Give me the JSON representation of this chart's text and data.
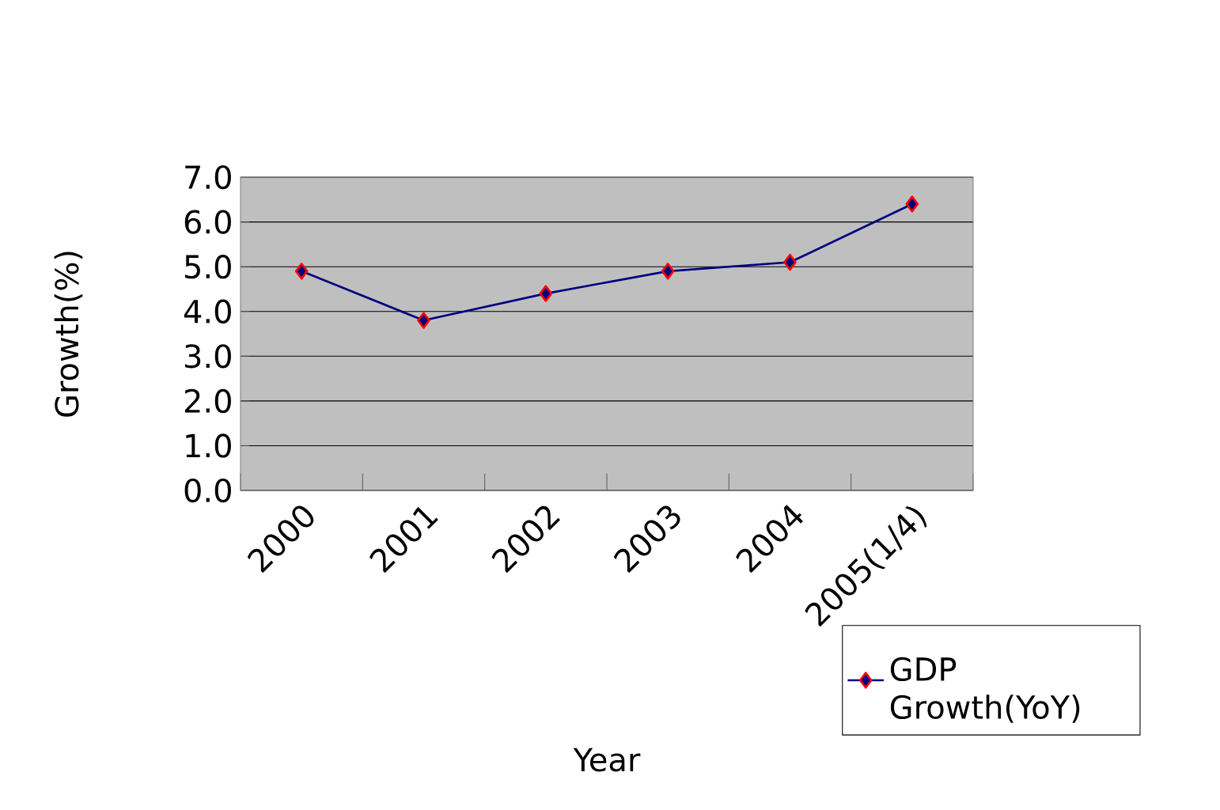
{
  "chart_data": {
    "type": "line",
    "xlabel": "Year",
    "ylabel": "Growth(%)",
    "categories": [
      "2000",
      "2001",
      "2002",
      "2003",
      "2004",
      "2005(1/4)"
    ],
    "series": [
      {
        "name": "GDP Growth(YoY)",
        "color": "#000080",
        "values": [
          4.9,
          3.8,
          4.4,
          4.9,
          5.1,
          6.4
        ]
      }
    ],
    "ylim": [
      0,
      7
    ],
    "yticks": [
      {
        "value": 0,
        "label": "0.0"
      },
      {
        "value": 1,
        "label": "1.0"
      },
      {
        "value": 2,
        "label": "2.0"
      },
      {
        "value": 3,
        "label": "3.0"
      },
      {
        "value": 4,
        "label": "4.0"
      },
      {
        "value": 5,
        "label": "5.0"
      },
      {
        "value": 6,
        "label": "6.0"
      },
      {
        "value": 7,
        "label": "7.0"
      }
    ],
    "grid": "y",
    "legend": "bottom right",
    "marker": "diamond",
    "line_style": "solid"
  }
}
